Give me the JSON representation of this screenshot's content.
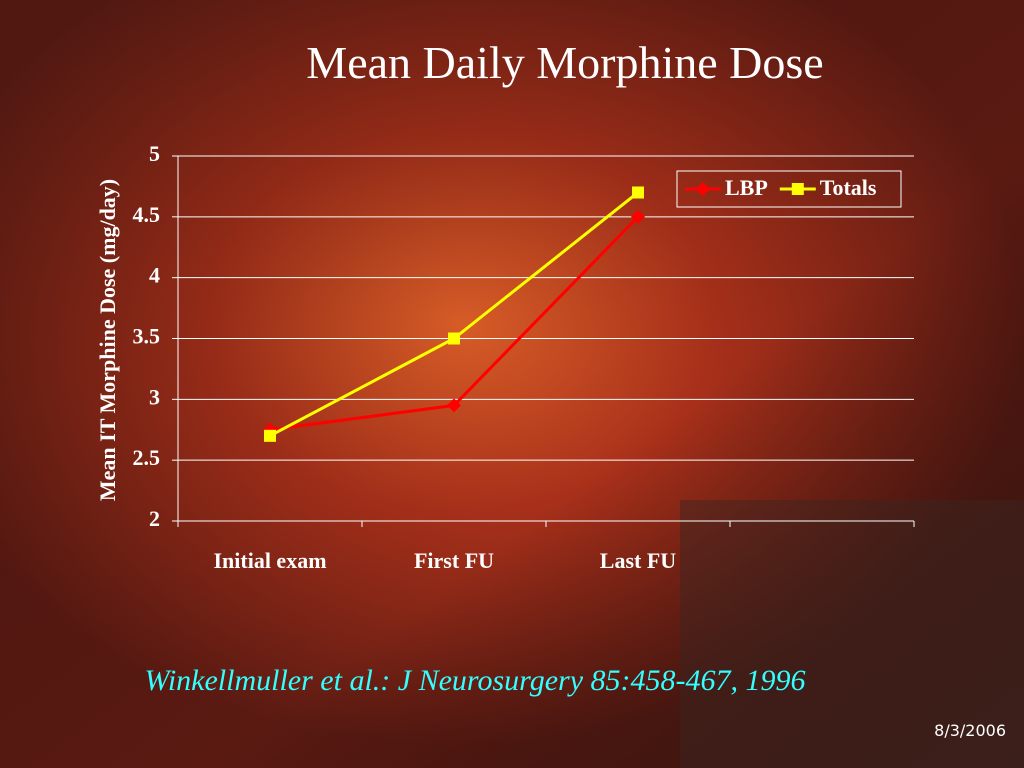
{
  "chart_data": {
    "type": "line",
    "title": "Mean Daily Morphine Dose",
    "y_label": "Mean IT Morphine Dose (mg/day)",
    "categories": [
      "Initial exam",
      "First FU",
      "Last FU",
      null
    ],
    "series": [
      {
        "name": "LBP",
        "color": "#ff0000",
        "marker": "diamond",
        "values": [
          2.75,
          2.95,
          4.5,
          null
        ]
      },
      {
        "name": "Totals",
        "color": "#ffff00",
        "marker": "square",
        "values": [
          2.7,
          3.5,
          4.7,
          null
        ]
      }
    ],
    "ylim": [
      2,
      5
    ],
    "yticks": [
      2,
      2.5,
      3,
      3.5,
      4,
      4.5,
      5
    ],
    "grid": true,
    "legend": "top-right"
  },
  "footer": {
    "citation": "Winkellmuller et al.: J Neurosurgery 85:458-467, 1996",
    "date": "8/3/2006"
  }
}
